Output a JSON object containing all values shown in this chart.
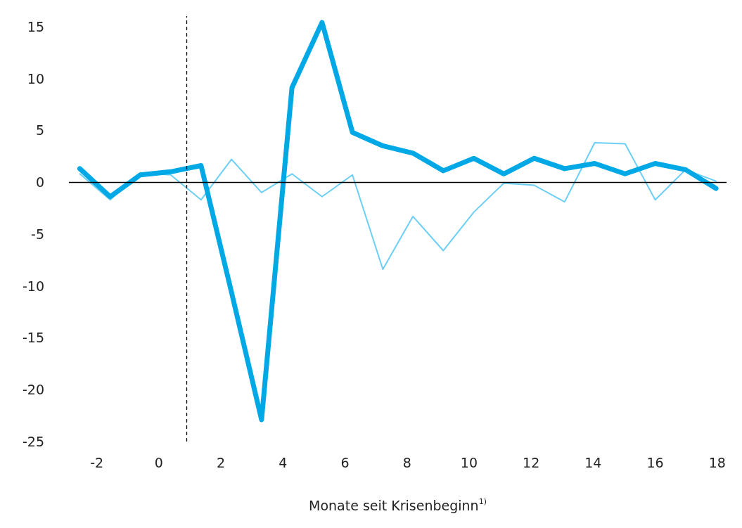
{
  "chart_data": {
    "type": "line",
    "xlabel": "Monate seit Krisenbeginn$^{1)}$",
    "x": [
      -2.55,
      -1.57,
      -0.6,
      0.38,
      1.36,
      2.34,
      3.31,
      4.29,
      5.26,
      6.24,
      7.22,
      8.19,
      9.17,
      10.15,
      11.12,
      12.1,
      13.08,
      14.05,
      15.03,
      16.0,
      16.98,
      17.96
    ],
    "series": [
      {
        "color": "#6ccff6",
        "values": [
          0.8,
          -1.7,
          0.9,
          0.7,
          -1.7,
          2.2,
          -1.0,
          0.8,
          -1.4,
          0.7,
          -8.4,
          -3.3,
          -6.6,
          -2.9,
          -0.1,
          -0.3,
          -1.9,
          3.8,
          3.7,
          -1.7,
          1.2,
          0.1
        ]
      },
      {
        "color": "#00a9e6",
        "values": [
          1.3,
          -1.4,
          0.7,
          1.0,
          1.6,
          -10.6,
          -22.9,
          9.1,
          15.4,
          4.8,
          3.5,
          2.8,
          1.1,
          2.3,
          0.8,
          2.3,
          1.3,
          1.8,
          0.8,
          1.8,
          1.2,
          -0.6
        ]
      }
    ],
    "xlim": [
      -2.9,
      18.3
    ],
    "xticks": [
      -2,
      0,
      2,
      4,
      6,
      8,
      10,
      12,
      14,
      16,
      18
    ],
    "ylim": [
      -25,
      16
    ],
    "yticks": [
      -25,
      -20,
      -15,
      -10,
      -5,
      0,
      5,
      10,
      15
    ],
    "ref_lines": [
      {
        "axis": "y",
        "value": 0,
        "color": "#000000",
        "line_style": "solid"
      },
      {
        "axis": "x",
        "value": 0.9,
        "color": "#000000",
        "line_style": "dashed"
      }
    ],
    "grid": false,
    "marker": "none",
    "line_style": "solid"
  }
}
